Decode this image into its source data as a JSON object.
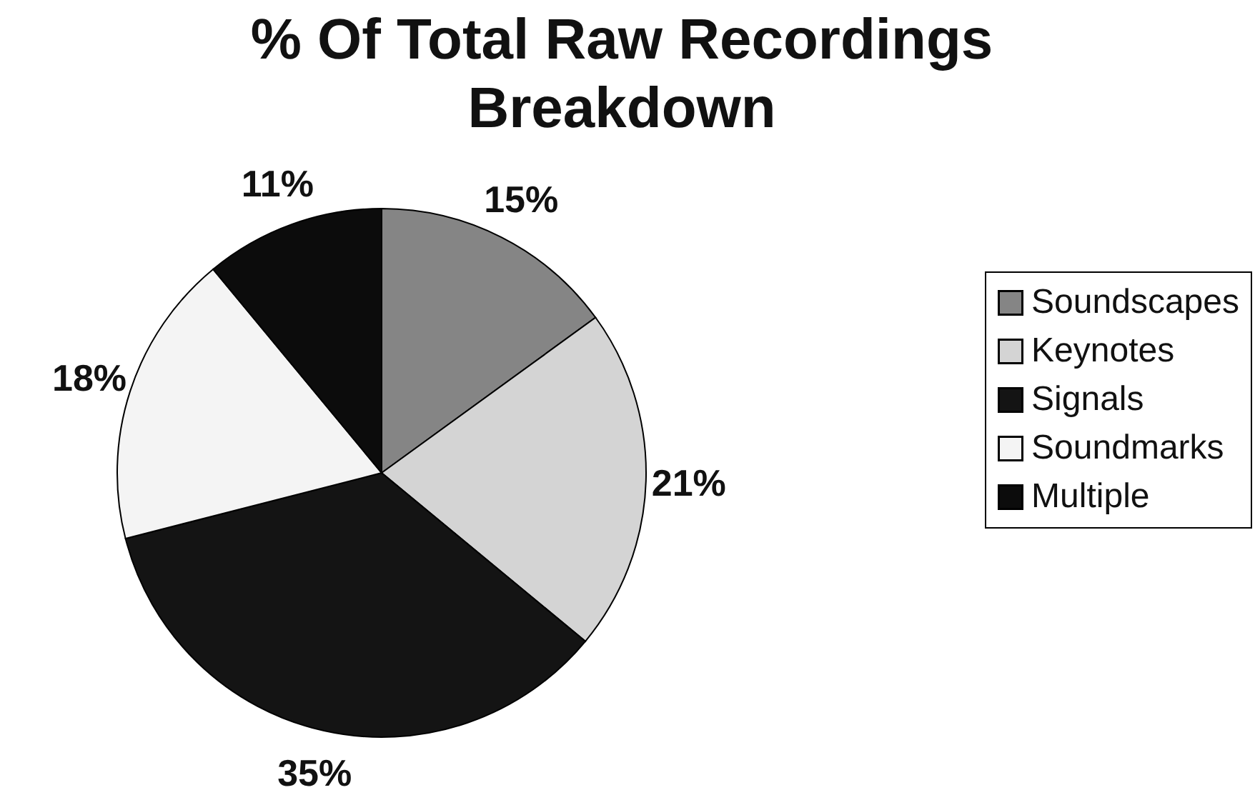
{
  "chart_data": {
    "type": "pie",
    "title": "% Of Total Raw Recordings Breakdown",
    "categories": [
      "Soundscapes",
      "Keynotes",
      "Signals",
      "Soundmarks",
      "Multiple"
    ],
    "values": [
      15,
      21,
      35,
      18,
      11
    ],
    "value_labels": [
      "15%",
      "21%",
      "35%",
      "18%",
      "11%"
    ],
    "colors": [
      "#858585",
      "#d4d4d4",
      "#141414",
      "#f4f4f4",
      "#0c0c0c"
    ],
    "legend": "right"
  }
}
